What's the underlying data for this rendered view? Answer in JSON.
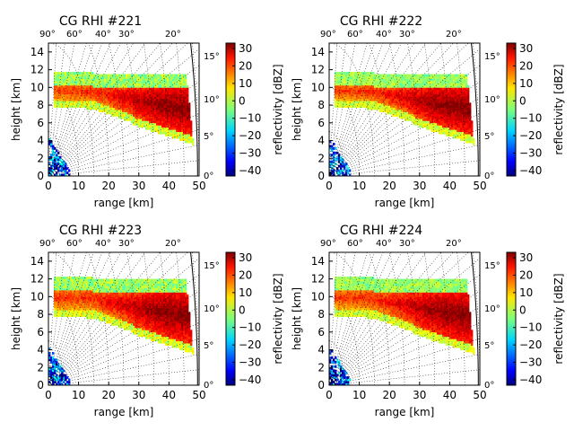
{
  "chart_data": [
    {
      "type": "heatmap",
      "title": "CG RHI #221",
      "xlabel": "range [km]",
      "ylabel": "height [km]",
      "xlim": [
        0,
        50
      ],
      "ylim": [
        0,
        15
      ],
      "x_ticks": [
        "0",
        "10",
        "20",
        "30",
        "40",
        "50"
      ],
      "y_ticks": [
        "0",
        "2",
        "4",
        "6",
        "8",
        "10",
        "12",
        "14"
      ],
      "elevation_labels_top": [
        "90°",
        "60°",
        "40°",
        "30°",
        "20°"
      ],
      "elevation_labels_right": [
        "0°",
        "5°",
        "10°",
        "15°"
      ],
      "colorbar": {
        "label": "reflectivity [dBZ]",
        "range": [
          -40,
          30
        ],
        "ticks": [
          "30",
          "20",
          "10",
          "0",
          "−10",
          "−20",
          "−30",
          "−40"
        ]
      },
      "features": {
        "anvil_top_km": 11,
        "anvil_base_km": 8,
        "core_dbz": 30,
        "core_range_km": [
          35,
          50
        ],
        "core_height_km": [
          4,
          8
        ]
      }
    },
    {
      "type": "heatmap",
      "title": "CG RHI #222",
      "xlabel": "range [km]",
      "ylabel": "height [km]",
      "xlim": [
        0,
        50
      ],
      "ylim": [
        0,
        15
      ],
      "x_ticks": [
        "0",
        "10",
        "20",
        "30",
        "40",
        "50"
      ],
      "y_ticks": [
        "0",
        "2",
        "4",
        "6",
        "8",
        "10",
        "12",
        "14"
      ],
      "elevation_labels_top": [
        "90°",
        "60°",
        "40°",
        "30°",
        "20°"
      ],
      "elevation_labels_right": [
        "0°",
        "5°",
        "10°",
        "15°"
      ],
      "colorbar": {
        "label": "reflectivity [dBZ]",
        "range": [
          -40,
          30
        ],
        "ticks": [
          "30",
          "20",
          "10",
          "0",
          "−10",
          "−20",
          "−30",
          "−40"
        ]
      },
      "features": {
        "anvil_top_km": 11,
        "anvil_base_km": 8,
        "core_dbz": 30,
        "core_range_km": [
          35,
          50
        ],
        "core_height_km": [
          4,
          8
        ]
      }
    },
    {
      "type": "heatmap",
      "title": "CG RHI #223",
      "xlabel": "range [km]",
      "ylabel": "height [km]",
      "xlim": [
        0,
        50
      ],
      "ylim": [
        0,
        15
      ],
      "x_ticks": [
        "0",
        "10",
        "20",
        "30",
        "40",
        "50"
      ],
      "y_ticks": [
        "0",
        "2",
        "4",
        "6",
        "8",
        "10",
        "12",
        "14"
      ],
      "elevation_labels_top": [
        "90°",
        "60°",
        "40°",
        "30°",
        "20°"
      ],
      "elevation_labels_right": [
        "0°",
        "5°",
        "10°",
        "15°"
      ],
      "colorbar": {
        "label": "reflectivity [dBZ]",
        "range": [
          -40,
          30
        ],
        "ticks": [
          "30",
          "20",
          "10",
          "0",
          "−10",
          "−20",
          "−30",
          "−40"
        ]
      },
      "features": {
        "anvil_top_km": 11.5,
        "anvil_base_km": 8,
        "core_dbz": 30,
        "core_range_km": [
          35,
          50
        ],
        "core_height_km": [
          4,
          8
        ]
      }
    },
    {
      "type": "heatmap",
      "title": "CG RHI #224",
      "xlabel": "range [km]",
      "ylabel": "height [km]",
      "xlim": [
        0,
        50
      ],
      "ylim": [
        0,
        15
      ],
      "x_ticks": [
        "0",
        "10",
        "20",
        "30",
        "40",
        "50"
      ],
      "y_ticks": [
        "0",
        "2",
        "4",
        "6",
        "8",
        "10",
        "12",
        "14"
      ],
      "elevation_labels_top": [
        "90°",
        "60°",
        "40°",
        "30°",
        "20°"
      ],
      "elevation_labels_right": [
        "0°",
        "5°",
        "10°",
        "15°"
      ],
      "colorbar": {
        "label": "reflectivity [dBZ]",
        "range": [
          -40,
          30
        ],
        "ticks": [
          "30",
          "20",
          "10",
          "0",
          "−10",
          "−20",
          "−30",
          "−40"
        ]
      },
      "features": {
        "anvil_top_km": 11.5,
        "anvil_base_km": 8,
        "core_dbz": 30,
        "core_range_km": [
          35,
          50
        ],
        "core_height_km": [
          4,
          8
        ]
      }
    }
  ]
}
